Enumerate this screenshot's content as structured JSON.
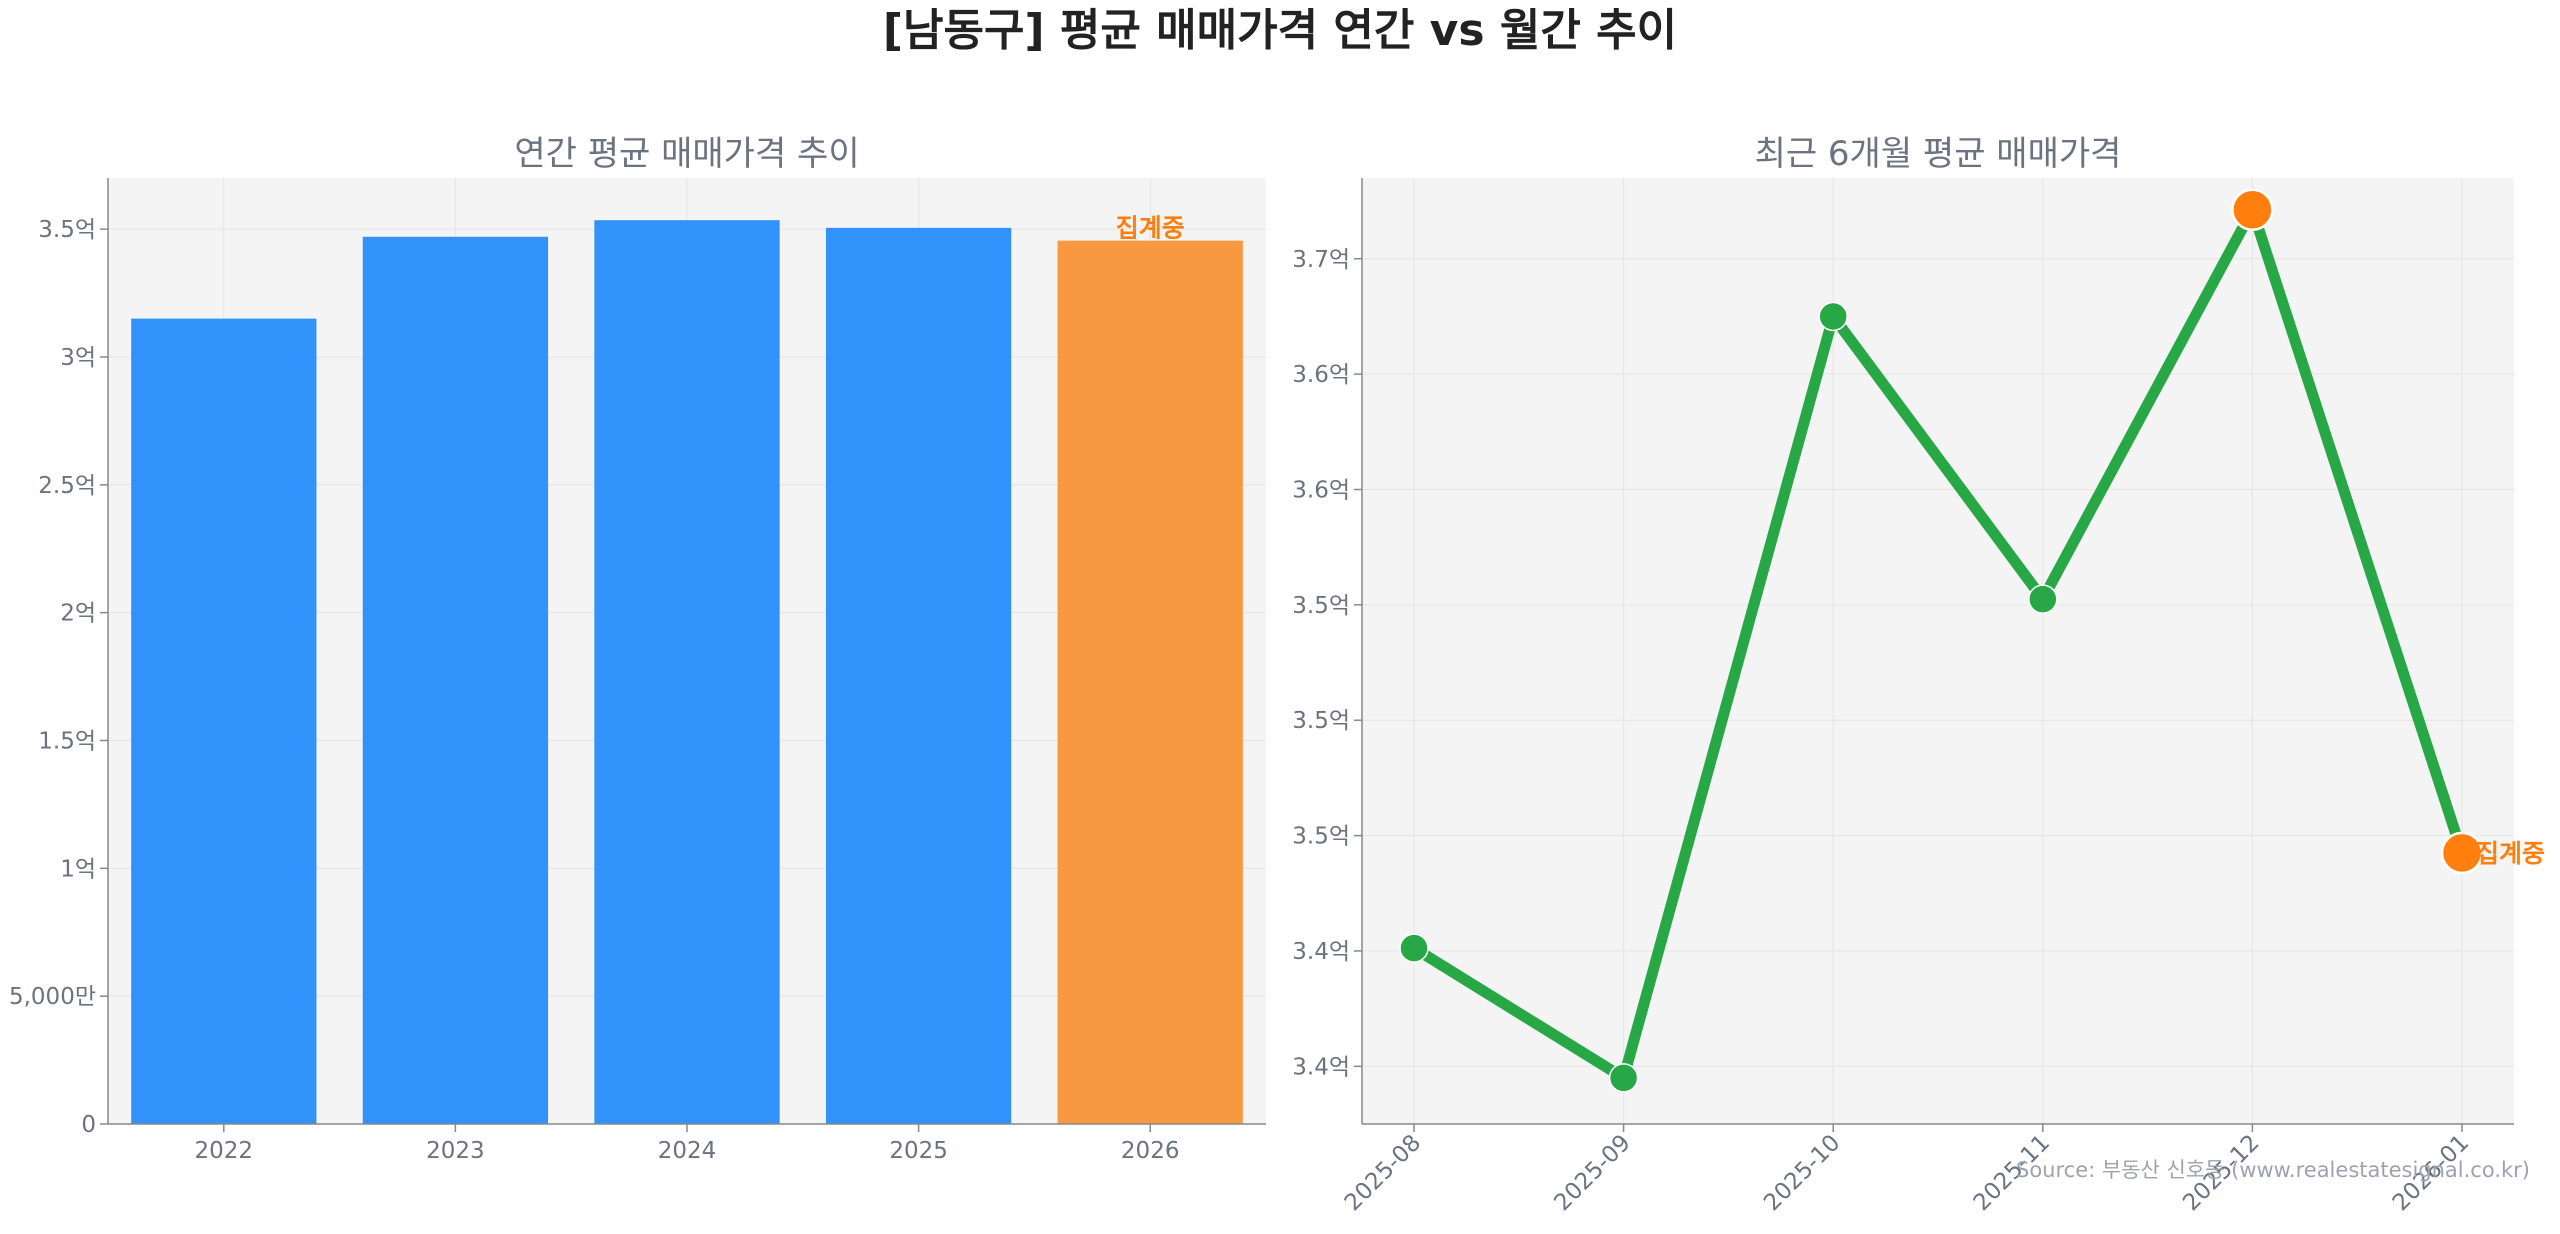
{
  "page": {
    "title": "[남동구] 평균 매매가격 연간 vs 월간 추이",
    "source": "Source: 부동산 신호등 (www.realestatesignal.co.kr)"
  },
  "colors": {
    "bar": "#3192fb",
    "bar_highlight": "#f89840",
    "line": "#27a745",
    "marker_highlight": "#ff7f0e",
    "plot_bg": "#f4f4f4",
    "grid": "#e4e4e4",
    "annotation": "#ff7f0e"
  },
  "chart_data": [
    {
      "type": "bar",
      "title": "연간 평균 매매가격 추이",
      "categories": [
        "2022",
        "2023",
        "2024",
        "2025",
        "2026"
      ],
      "values": [
        315000000,
        347000000,
        353500000,
        350500000,
        345500000
      ],
      "highlight_index": 4,
      "annotation": "집계중",
      "ylim": [
        0,
        370000000
      ],
      "yticks": [
        {
          "value": 0,
          "label": "0"
        },
        {
          "value": 50000000,
          "label": "5,000만"
        },
        {
          "value": 100000000,
          "label": "1억"
        },
        {
          "value": 150000000,
          "label": "1.5억"
        },
        {
          "value": 200000000,
          "label": "2억"
        },
        {
          "value": 250000000,
          "label": "2.5억"
        },
        {
          "value": 300000000,
          "label": "3억"
        },
        {
          "value": 350000000,
          "label": "3.5억"
        }
      ],
      "grid": true,
      "xlabel": "",
      "ylabel": ""
    },
    {
      "type": "line",
      "title": "최근 6개월 평균 매매가격",
      "categories": [
        "2025-08",
        "2025-09",
        "2025-10",
        "2025-11",
        "2025-12",
        "2026-01"
      ],
      "values": [
        342100000,
        337600000,
        364000000,
        354200000,
        367700000,
        345400000
      ],
      "highlight_indices": [
        4,
        5
      ],
      "annotation": "집계중",
      "ylim": [
        336000000,
        368800000
      ],
      "yticks": [
        {
          "value": 338000000,
          "label": "3.4억"
        },
        {
          "value": 342000000,
          "label": "3.4억"
        },
        {
          "value": 346000000,
          "label": "3.5억"
        },
        {
          "value": 350000000,
          "label": "3.5억"
        },
        {
          "value": 354000000,
          "label": "3.5억"
        },
        {
          "value": 358000000,
          "label": "3.6억"
        },
        {
          "value": 362000000,
          "label": "3.6억"
        },
        {
          "value": 366000000,
          "label": "3.7억"
        }
      ],
      "grid": true,
      "xlabel": "",
      "ylabel": ""
    }
  ]
}
